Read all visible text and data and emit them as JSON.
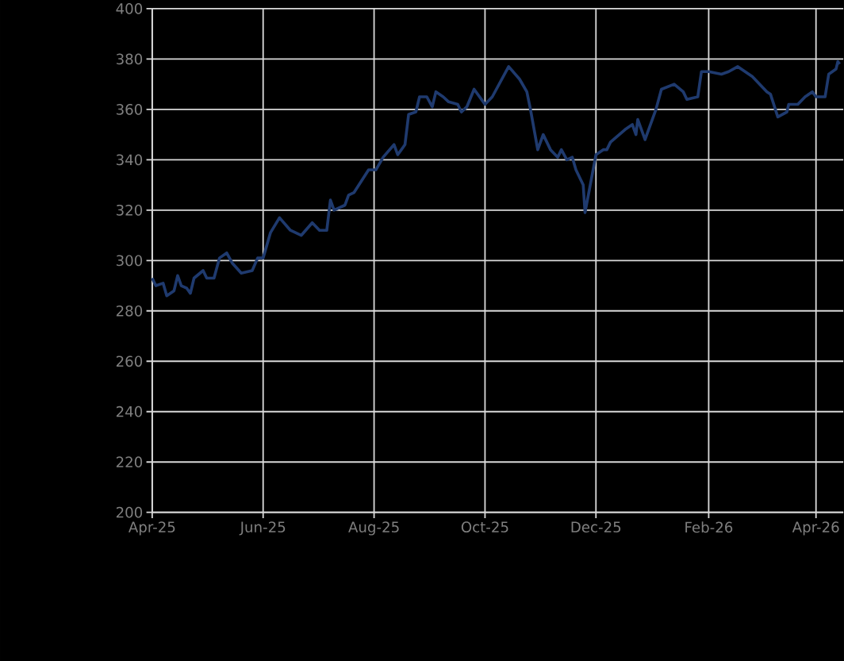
{
  "chart_data": {
    "type": "line",
    "x": [
      "2025-04-01",
      "2025-04-03",
      "2025-04-07",
      "2025-04-09",
      "2025-04-13",
      "2025-04-15",
      "2025-04-17",
      "2025-04-20",
      "2025-04-22",
      "2025-04-24",
      "2025-04-29",
      "2025-05-01",
      "2025-05-05",
      "2025-05-08",
      "2025-05-12",
      "2025-05-15",
      "2025-05-20",
      "2025-05-26",
      "2025-05-29",
      "2025-06-01",
      "2025-06-05",
      "2025-06-10",
      "2025-06-16",
      "2025-06-22",
      "2025-06-28",
      "2025-07-02",
      "2025-07-06",
      "2025-07-08",
      "2025-07-10",
      "2025-07-16",
      "2025-07-18",
      "2025-07-21",
      "2025-07-29",
      "2025-08-02",
      "2025-08-06",
      "2025-08-12",
      "2025-08-14",
      "2025-08-18",
      "2025-08-20",
      "2025-08-24",
      "2025-08-26",
      "2025-08-30",
      "2025-09-02",
      "2025-09-04",
      "2025-09-08",
      "2025-09-11",
      "2025-09-16",
      "2025-09-18",
      "2025-09-21",
      "2025-09-25",
      "2025-09-29",
      "2025-10-01",
      "2025-10-05",
      "2025-10-14",
      "2025-10-20",
      "2025-10-24",
      "2025-10-26",
      "2025-10-30",
      "2025-11-02",
      "2025-11-06",
      "2025-11-10",
      "2025-11-12",
      "2025-11-15",
      "2025-11-18",
      "2025-11-20",
      "2025-11-24",
      "2025-11-25",
      "2025-12-01",
      "2025-12-05",
      "2025-12-07",
      "2025-12-09",
      "2025-12-17",
      "2025-12-21",
      "2025-12-23",
      "2025-12-24",
      "2025-12-28",
      "2026-01-03",
      "2026-01-06",
      "2026-01-13",
      "2026-01-18",
      "2026-01-20",
      "2026-01-26",
      "2026-01-28",
      "2026-02-01",
      "2026-02-08",
      "2026-02-12",
      "2026-02-17",
      "2026-02-21",
      "2026-02-25",
      "2026-03-05",
      "2026-03-07",
      "2026-03-11",
      "2026-03-16",
      "2026-03-17",
      "2026-03-22",
      "2026-03-26",
      "2026-03-30",
      "2026-04-01",
      "2026-04-06",
      "2026-04-08",
      "2026-04-12",
      "2026-04-13",
      "2026-04-14"
    ],
    "series": [
      {
        "color": "#1f3a6e",
        "values": [
          293,
          290,
          291,
          286,
          288,
          294,
          290,
          289,
          287,
          293,
          296,
          293,
          293,
          301,
          303,
          299,
          295,
          296,
          301,
          301,
          311,
          317,
          312,
          310,
          315,
          312,
          312,
          324,
          320,
          322,
          326,
          327,
          336,
          336,
          341,
          346,
          342,
          346,
          358,
          359,
          365,
          365,
          361,
          367,
          365,
          363,
          362,
          359,
          361,
          368,
          364,
          362,
          365,
          377,
          372,
          367,
          360,
          344,
          350,
          344,
          341,
          344,
          340,
          341,
          336,
          330,
          319,
          342,
          344,
          344,
          347,
          352,
          354,
          350,
          356,
          348,
          360,
          368,
          370,
          367,
          364,
          365,
          375,
          375,
          374,
          375,
          377,
          375,
          373,
          367,
          366,
          357,
          359,
          362,
          362,
          365,
          367,
          365,
          365,
          374,
          376,
          379,
          378
        ]
      }
    ],
    "xlim": [
      "2025-04-01",
      "2026-04-16"
    ],
    "xticks": [
      {
        "value": "2025-04-01",
        "label": "Apr-25"
      },
      {
        "value": "2025-06-01",
        "label": "Jun-25"
      },
      {
        "value": "2025-08-01",
        "label": "Aug-25"
      },
      {
        "value": "2025-10-01",
        "label": "Oct-25"
      },
      {
        "value": "2025-12-01",
        "label": "Dec-25"
      },
      {
        "value": "2026-02-01",
        "label": "Feb-26"
      },
      {
        "value": "2026-04-01",
        "label": "Apr-26"
      }
    ],
    "ylim": [
      200,
      400
    ],
    "yticks": [
      200,
      220,
      240,
      260,
      280,
      300,
      320,
      340,
      360,
      380,
      400
    ],
    "grid": true
  }
}
